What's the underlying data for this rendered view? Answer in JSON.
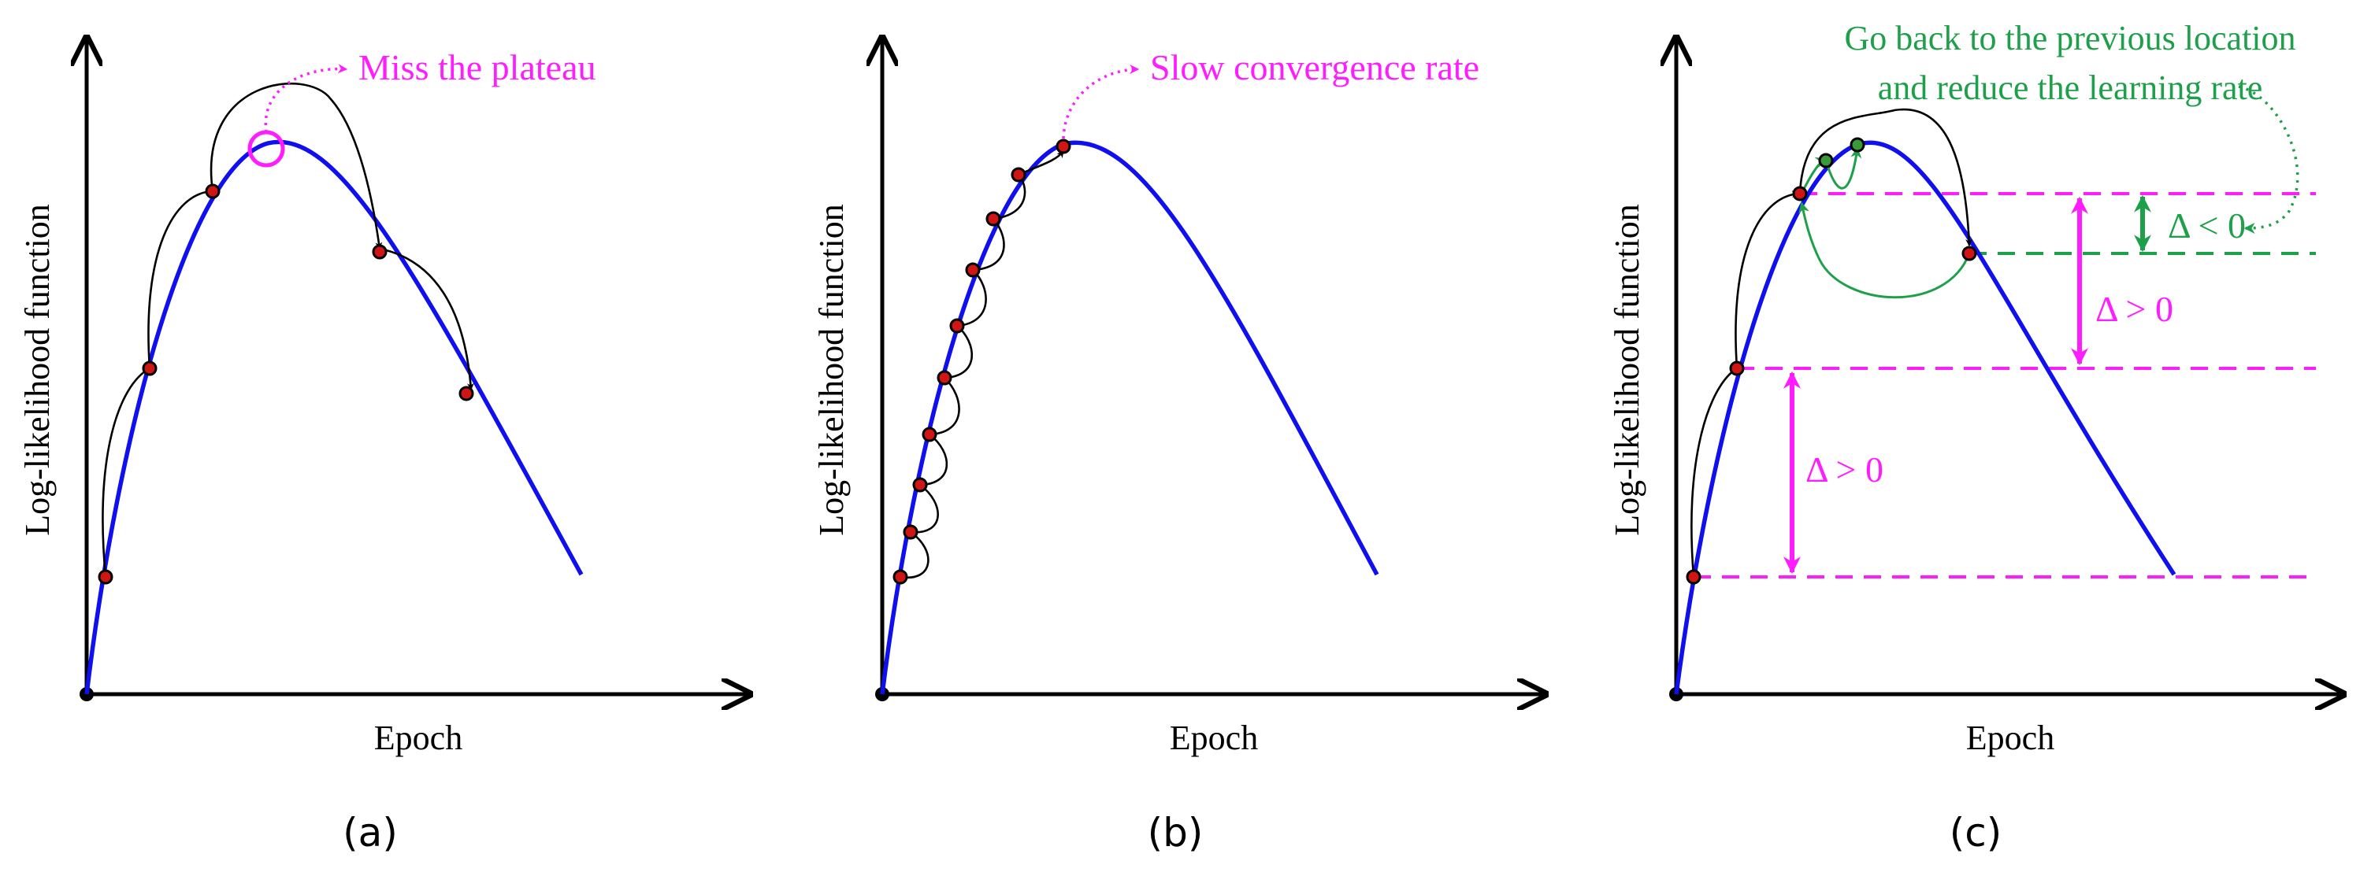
{
  "panels": [
    {
      "id": "a",
      "caption": "(a)",
      "xlabel": "Epoch",
      "ylabel": "Log-likelihood function",
      "annotation": "Miss the plateau"
    },
    {
      "id": "b",
      "caption": "(b)",
      "xlabel": "Epoch",
      "ylabel": "Log-likelihood function",
      "annotation": "Slow convergence rate"
    },
    {
      "id": "c",
      "caption": "(c)",
      "xlabel": "Epoch",
      "ylabel": "Log-likelihood function",
      "annotation_line1": "Go back to the previous location",
      "annotation_line2": "and reduce the learning rate",
      "delta_negative": "Δ < 0",
      "delta_positive_upper": "Δ > 0",
      "delta_positive_lower": "Δ > 0"
    }
  ],
  "colors": {
    "curve": "#1010ee",
    "point": "#d01515",
    "annotation_magenta": "#ff1dff",
    "annotation_green": "#1ea04a"
  }
}
